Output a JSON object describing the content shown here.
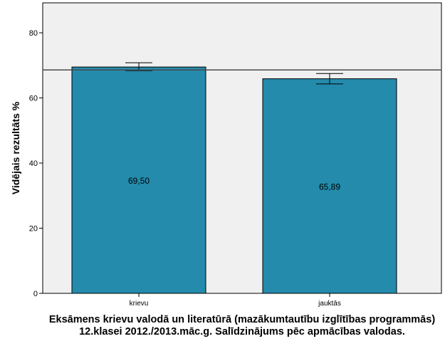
{
  "chart_data": {
    "type": "bar",
    "title": [
      "Eksāmens krievu valodā un literatūrā (mazākumtautību izglītības programmās)",
      "12.klasei 2012./2013.māc.g. Salīdzinājums pēc apmācības valodas."
    ],
    "xlabel": "",
    "ylabel": "Vidējais rezultāts %",
    "ylim": [
      0,
      89.2
    ],
    "yticks": [
      0,
      20,
      40,
      60,
      80
    ],
    "categories": [
      "krievu",
      "jauktās"
    ],
    "values": [
      69.5,
      65.89
    ],
    "value_labels": [
      "69,50",
      "65,89"
    ],
    "error_low": [
      68.4,
      64.3
    ],
    "error_high": [
      70.8,
      67.5
    ],
    "reference_line": 68.6,
    "grid": false,
    "colors": {
      "bar": "#248bac",
      "background": "#f0f0f0",
      "reference": "#4a4a4a"
    }
  }
}
